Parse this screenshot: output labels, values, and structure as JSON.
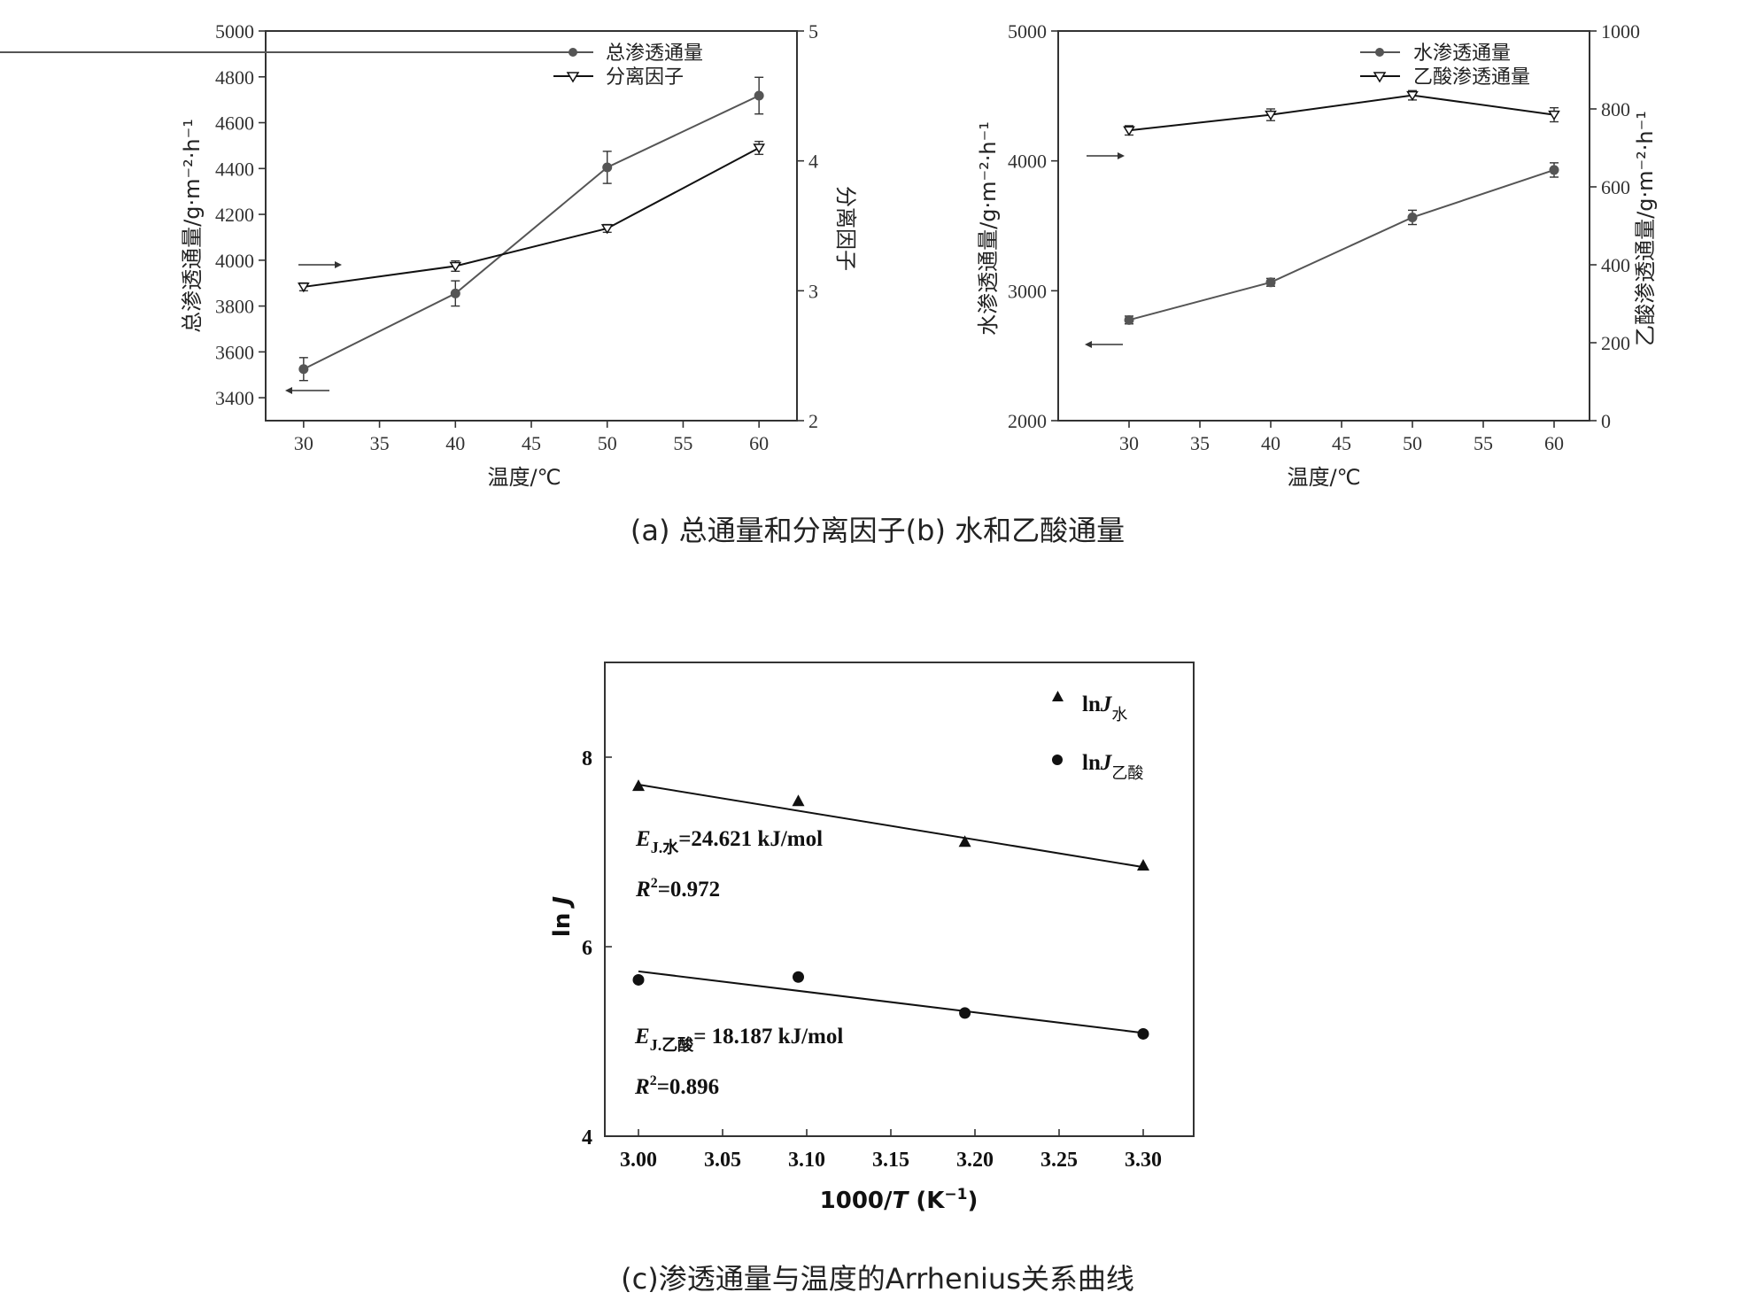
{
  "captions": {
    "ab": "(a) 总通量和分离因子(b) 水和乙酸通量",
    "c": "(c)渗透通量与温度的Arrhenius关系曲线"
  },
  "chart_data": [
    {
      "type": "line",
      "xlabel": "温度/℃",
      "ylabel": "总渗透通量/g·m⁻²·h⁻¹",
      "y2label": "分离因子",
      "xlim": [
        27.5,
        62.5
      ],
      "ylim": [
        3300,
        5000
      ],
      "y2lim": [
        2,
        5
      ],
      "xticks": [
        30,
        35,
        40,
        45,
        50,
        55,
        60
      ],
      "yticks": [
        3400,
        3600,
        3800,
        4000,
        4200,
        4400,
        4600,
        4800,
        5000
      ],
      "y2ticks": [
        2,
        3,
        4,
        5
      ],
      "x": [
        30,
        40,
        50,
        60
      ],
      "series": [
        {
          "name": "总渗透通量",
          "axis": "left",
          "marker": "circle",
          "color": "#555555",
          "values": [
            3525,
            3855,
            4405,
            4718
          ],
          "errors": [
            50,
            55,
            70,
            80
          ]
        },
        {
          "name": "分离因子",
          "axis": "right",
          "marker": "triangle-down",
          "color": "#111111",
          "values": [
            3.03,
            3.19,
            3.48,
            4.1
          ],
          "errors": [
            0.03,
            0.04,
            0.03,
            0.05
          ]
        }
      ],
      "legend_position": "top"
    },
    {
      "type": "line",
      "xlabel": "温度/℃",
      "ylabel": "水渗透通量/g·m⁻²·h⁻¹",
      "y2label": "乙酸渗透通量/g·m⁻²·h⁻¹",
      "xlim": [
        25,
        62.5
      ],
      "ylim": [
        2000,
        5000
      ],
      "y2lim": [
        0,
        1000
      ],
      "xticks": [
        30,
        35,
        40,
        45,
        50,
        55,
        60
      ],
      "yticks": [
        2000,
        3000,
        4000,
        5000
      ],
      "y2ticks": [
        0,
        200,
        400,
        600,
        800,
        1000
      ],
      "x": [
        30,
        40,
        50,
        60
      ],
      "series": [
        {
          "name": "水渗透通量",
          "axis": "left",
          "marker": "circle",
          "color": "#555555",
          "values": [
            2775,
            3065,
            3565,
            3930
          ],
          "errors": [
            30,
            30,
            55,
            55
          ]
        },
        {
          "name": "乙酸渗透通量",
          "axis": "right",
          "marker": "triangle-down",
          "color": "#111111",
          "values": [
            745,
            785,
            835,
            785
          ],
          "errors": [
            12,
            15,
            12,
            18
          ]
        }
      ],
      "legend_position": "top-right"
    },
    {
      "type": "scatter",
      "xlabel": "1000/T (K⁻¹)",
      "ylabel": "ln J",
      "xlim": [
        2.98,
        3.33
      ],
      "ylim": [
        4,
        9
      ],
      "xticks": [
        "3.00",
        "3.05",
        "3.10",
        "3.15",
        "3.20",
        "3.25",
        "3.30"
      ],
      "yticks": [
        4,
        6,
        8
      ],
      "series": [
        {
          "name": "lnJ水",
          "marker": "triangle",
          "color": "#111111",
          "x": [
            3.0,
            3.095,
            3.194,
            3.3
          ],
          "values": [
            7.7,
            7.54,
            7.11,
            6.86
          ],
          "fit": {
            "x": [
              3.0,
              3.3
            ],
            "y": [
              7.71,
              6.84
            ]
          }
        },
        {
          "name": "lnJ乙酸",
          "marker": "circle",
          "color": "#111111",
          "x": [
            3.0,
            3.095,
            3.194,
            3.3
          ],
          "values": [
            5.65,
            5.68,
            5.3,
            5.08
          ],
          "fit": {
            "x": [
              3.0,
              3.3
            ],
            "y": [
              5.74,
              5.09
            ]
          }
        }
      ],
      "annotations": [
        {
          "E": "E",
          "sub": "J.水",
          "rest": "=24.621 kJ/mol",
          "R": "R",
          "sup": "2",
          "r2": "=0.972"
        },
        {
          "E": "E",
          "sub": "J.乙酸",
          "rest": "= 18.187 kJ/mol",
          "R": "R",
          "sup": "2",
          "r2": "=0.896"
        }
      ],
      "legend_position": "top-right"
    }
  ]
}
